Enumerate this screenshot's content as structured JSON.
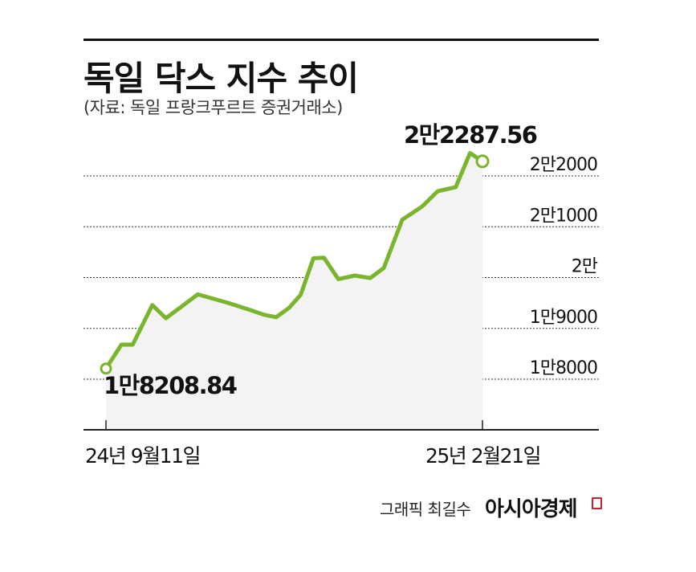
{
  "header": {
    "title": "독일 닥스 지수 추이",
    "source": "(자료: 독일 프랑크푸르트 증권거래소)"
  },
  "chart_data": {
    "type": "area",
    "title": "독일 닥스 지수 추이",
    "xlabel": "",
    "ylabel": "",
    "ylim": [
      17000,
      22500
    ],
    "x_tick_labels": [
      "24년 9월11일",
      "25년 2월21일"
    ],
    "y_ticks": [
      {
        "value": 18000,
        "label": "1만8000"
      },
      {
        "value": 19000,
        "label": "1만9000"
      },
      {
        "value": 20000,
        "label": "2만"
      },
      {
        "value": 21000,
        "label": "2만1000"
      },
      {
        "value": 22000,
        "label": "2만2000"
      }
    ],
    "grid": true,
    "series": [
      {
        "color": "#7ab52d",
        "values": [
          18208.84,
          18680,
          18680,
          19460,
          19200,
          19420,
          19670,
          19500,
          19350,
          19270,
          19220,
          19400,
          19660,
          20380,
          20390,
          19970,
          20040,
          19990,
          20190,
          21140,
          21400,
          21700,
          21780,
          22450,
          22287.56
        ]
      }
    ],
    "annotations": [
      {
        "label": "1만8208.84",
        "index": 0
      },
      {
        "label": "2만2287.56",
        "index": 24
      }
    ]
  },
  "footer": {
    "credit": "그래픽 최길수",
    "brand": "아시아경제"
  }
}
